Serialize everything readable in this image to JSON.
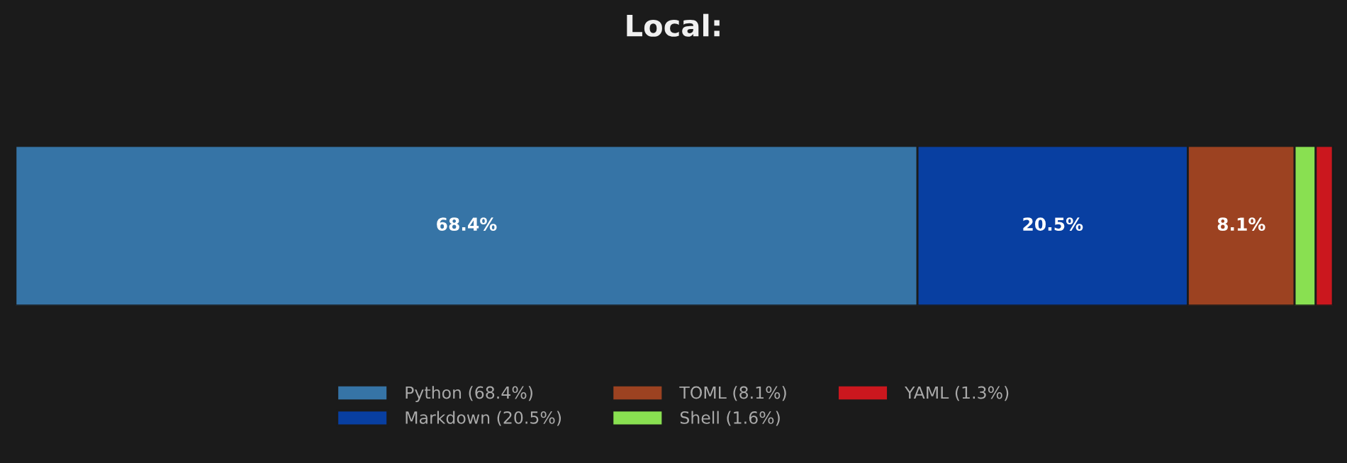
{
  "chart_data": {
    "type": "bar",
    "title": "Local:",
    "orientation": "horizontal",
    "stacked": true,
    "categories": [
      null
    ],
    "tick_labels": false,
    "legend": "bottom",
    "grid": false,
    "series": [
      {
        "name": "Python (68.4%)",
        "color": "#3674a6",
        "values": [
          68.4
        ],
        "value_labels": [
          "68.4%"
        ]
      },
      {
        "name": "Markdown (20.5%)",
        "color": "#083fa1",
        "values": [
          20.5
        ],
        "value_labels": [
          "20.5%"
        ]
      },
      {
        "name": "TOML (8.1%)",
        "color": "#9c4221",
        "values": [
          8.1
        ],
        "value_labels": [
          "8.1%"
        ]
      },
      {
        "name": "Shell (1.6%)",
        "color": "#89e051",
        "values": [
          1.6
        ],
        "value_labels": [
          null
        ]
      },
      {
        "name": "YAML (1.3%)",
        "color": "#cb171e",
        "values": [
          1.3
        ],
        "value_labels": [
          null
        ]
      }
    ]
  }
}
